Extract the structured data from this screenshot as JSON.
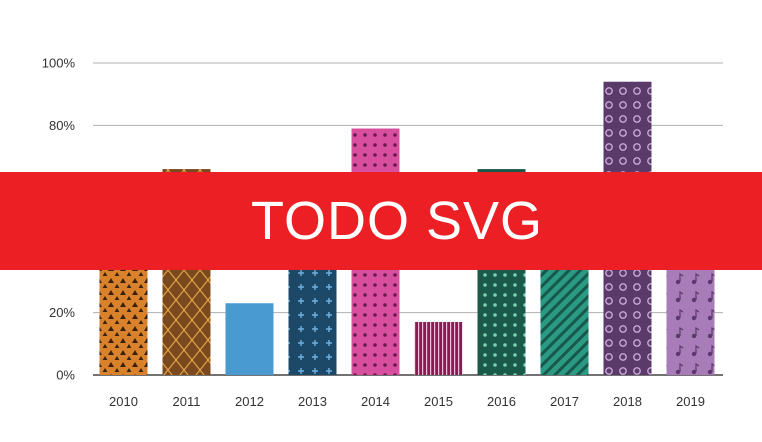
{
  "chart_data": {
    "type": "bar",
    "categories": [
      "2010",
      "2011",
      "2012",
      "2013",
      "2014",
      "2015",
      "2016",
      "2017",
      "2018",
      "2019"
    ],
    "values": [
      36,
      66,
      23,
      37,
      79,
      17,
      66,
      43,
      94,
      35
    ],
    "colors": [
      "#d9822b",
      "#7a4a1e",
      "#4a9ad2",
      "#1d4968",
      "#d94fa0",
      "#8c1a52",
      "#1a5a4a",
      "#2a9a84",
      "#5a3a68",
      "#a87cb8"
    ],
    "patterns": [
      "triangles",
      "diamond-lattice",
      "solid",
      "crosses",
      "dots",
      "vertical-lines",
      "dots",
      "diagonal-stripes",
      "rings",
      "music-notes"
    ],
    "yticks": [
      "0%",
      "20%",
      "40%",
      "60%",
      "80%",
      "100%"
    ],
    "ylim": [
      0,
      100
    ],
    "grid": true,
    "title": "",
    "xlabel": "",
    "ylabel": ""
  },
  "overlay": {
    "text": "TODO SVG",
    "color": "#ec1f24"
  }
}
